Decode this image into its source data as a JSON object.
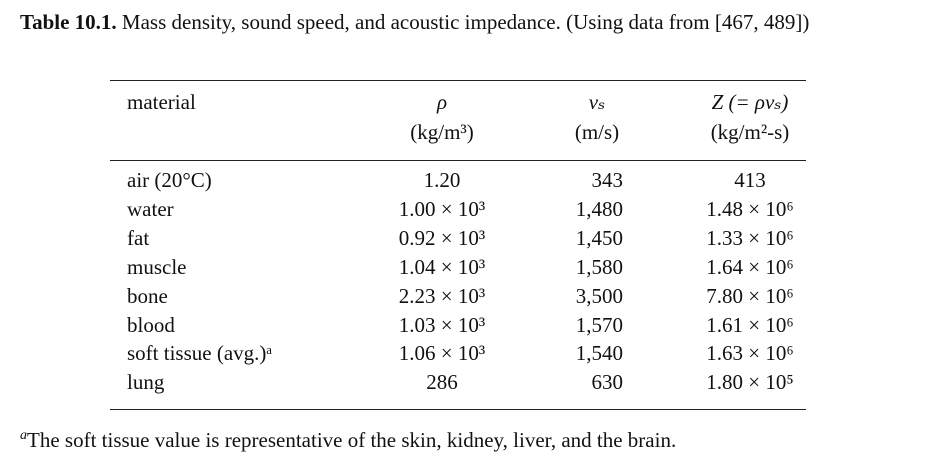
{
  "caption": {
    "label": "Table 10.1.",
    "text": "Mass density, sound speed, and acoustic impedance. (Using data from [467, 489])"
  },
  "table": {
    "header": [
      [
        "material",
        ""
      ],
      [
        "ρ",
        "(kg/m³)"
      ],
      [
        "vₛ",
        "(m/s)"
      ],
      [
        "Z (= ρvₛ)",
        "(kg/m²-s)"
      ]
    ],
    "rows": [
      [
        "air (20°C)",
        "1.20",
        "343",
        "413"
      ],
      [
        "water",
        "1.00 × 10³",
        "1,480",
        "1.48 × 10⁶"
      ],
      [
        "fat",
        "0.92 × 10³",
        "1,450",
        "1.33 × 10⁶"
      ],
      [
        "muscle",
        "1.04 × 10³",
        "1,580",
        "1.64 × 10⁶"
      ],
      [
        "bone",
        "2.23 × 10³",
        "3,500",
        "7.80 × 10⁶"
      ],
      [
        "blood",
        "1.03 × 10³",
        "1,570",
        "1.61 × 10⁶"
      ],
      [
        "soft tissue (avg.)ᵃ",
        "1.06 × 10³",
        "1,540",
        "1.63 × 10⁶"
      ],
      [
        "lung",
        "286",
        "630",
        "1.80 × 10⁵"
      ]
    ]
  },
  "footnote": {
    "marker": "a",
    "text": "The soft tissue value is representative of the skin, kidney, liver, and the brain."
  }
}
